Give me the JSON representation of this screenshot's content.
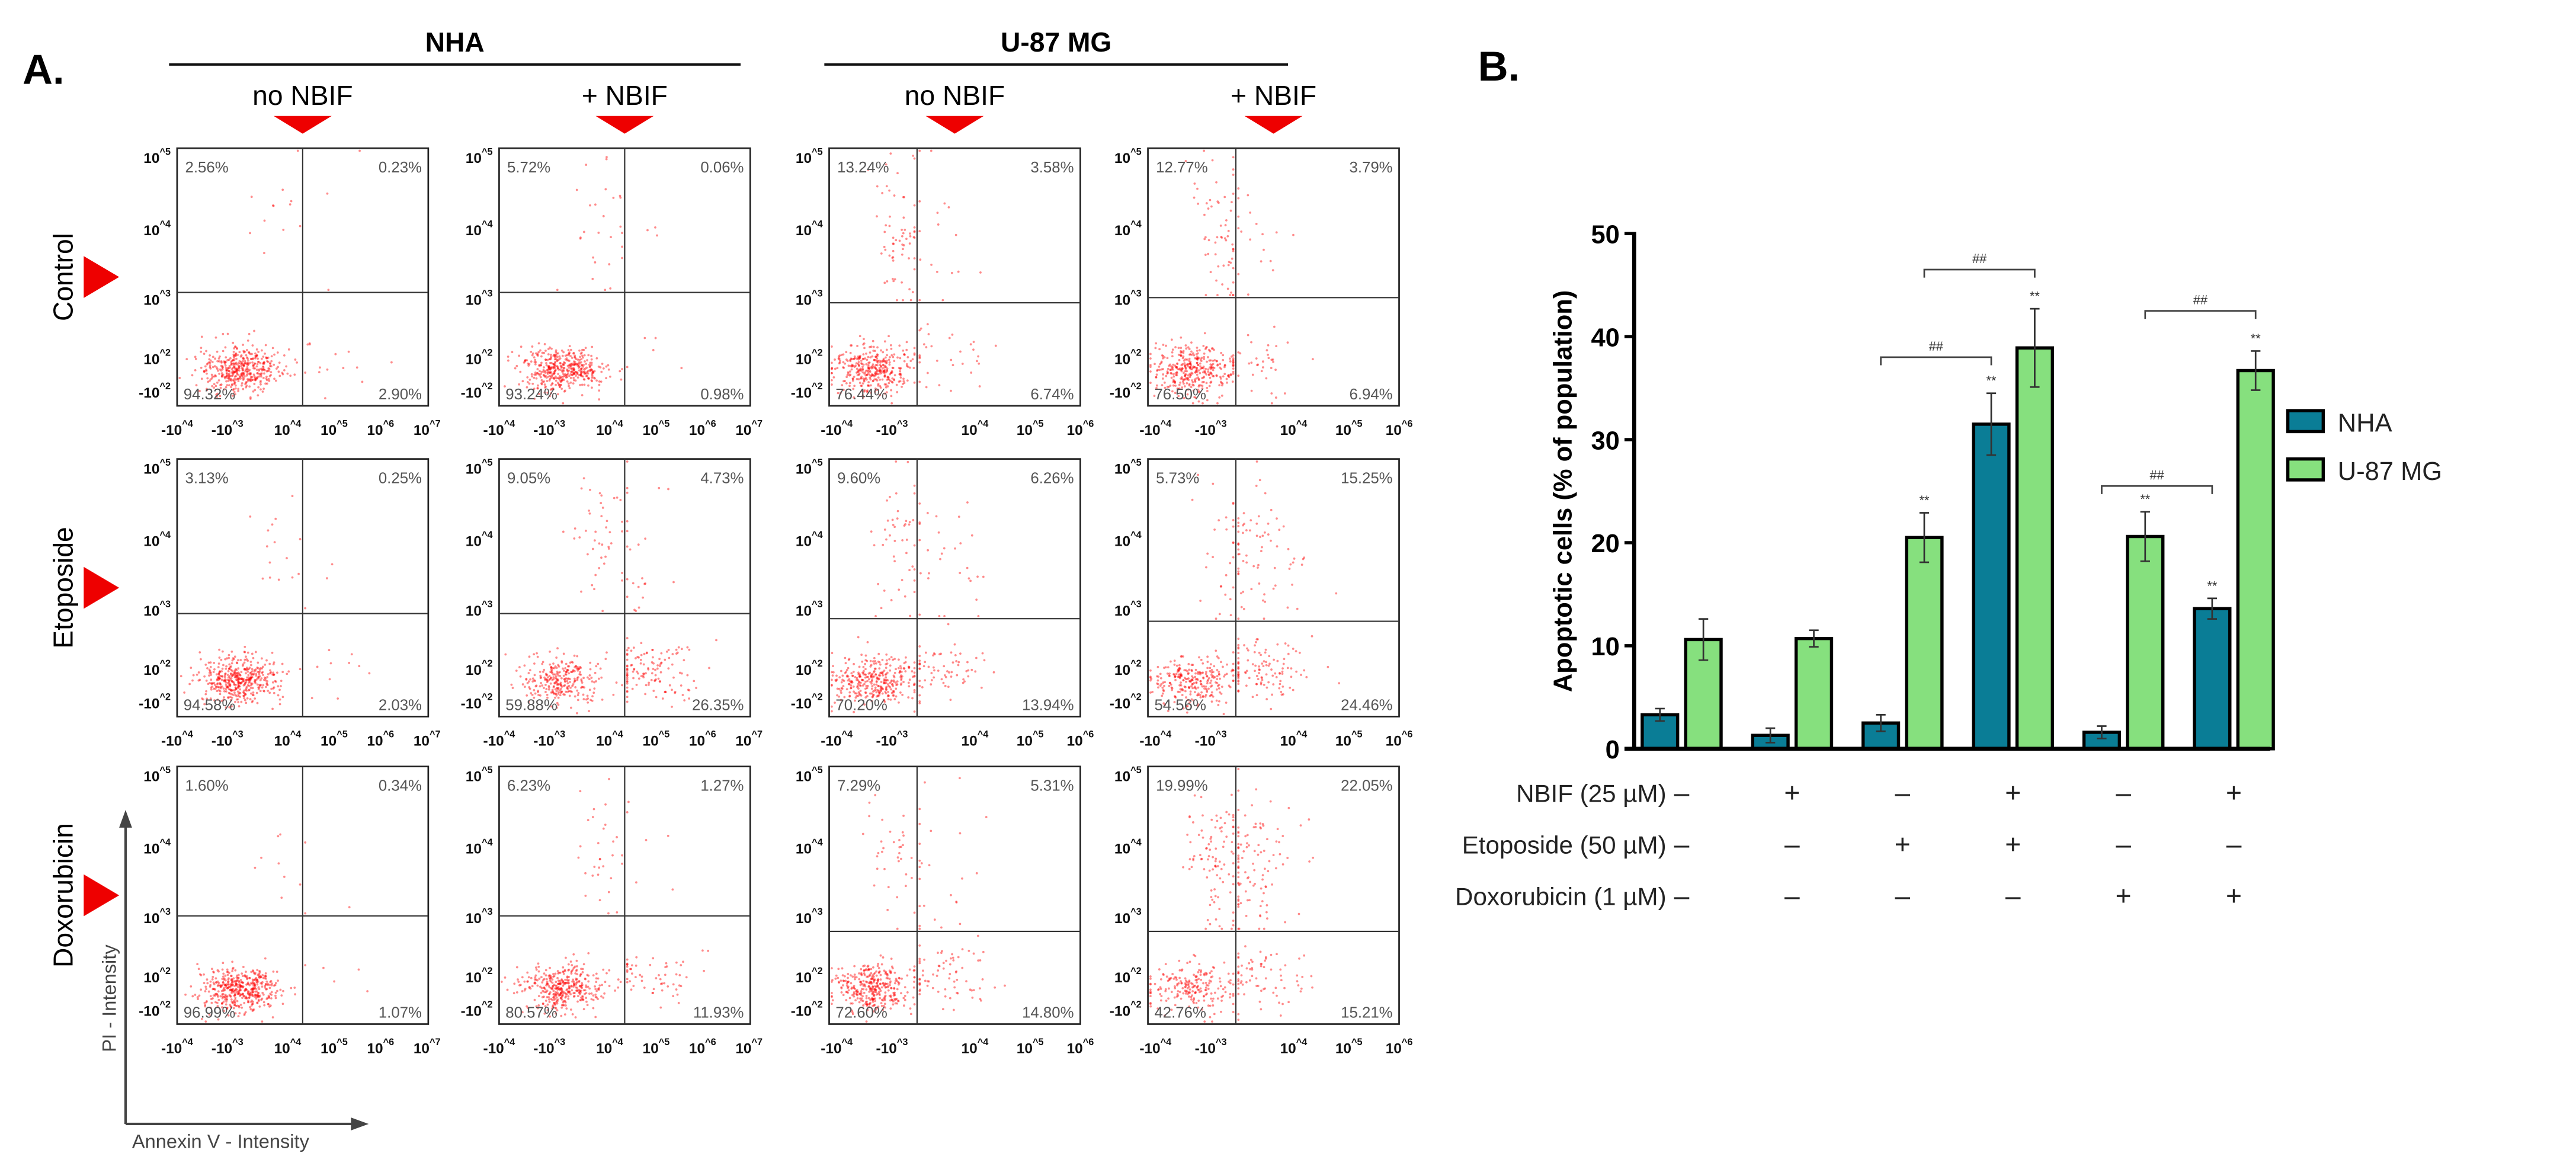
{
  "panel_a": {
    "label": "A.",
    "groups": [
      {
        "name": "NHA",
        "columns": [
          "no NBIF",
          "+ NBIF"
        ]
      },
      {
        "name": "U-87 MG",
        "columns": [
          "no NBIF",
          "+ NBIF"
        ]
      }
    ],
    "rows": [
      "Control",
      "Etoposide",
      "Doxorubicin"
    ],
    "y_ticks": [
      "10^5",
      "10^4",
      "10^3",
      "10^2",
      "-10^2"
    ],
    "x_ticks_nha": [
      "-10^4",
      "-10^3",
      "10^4",
      "10^5",
      "10^6",
      "10^7"
    ],
    "x_ticks_u87": [
      "-10^4",
      "-10^3",
      "10^4",
      "10^5",
      "10^6"
    ],
    "y_axis_label": "PI - Intensity",
    "x_axis_label": "Annexin V - Intensity",
    "quadrants": [
      [
        {
          "ul": "2.56%",
          "ur": "0.23%",
          "ll": "94.32%",
          "lr": "2.90%"
        },
        {
          "ul": "5.72%",
          "ur": "0.06%",
          "ll": "93.24%",
          "lr": "0.98%"
        },
        {
          "ul": "13.24%",
          "ur": "3.58%",
          "ll": "76.44%",
          "lr": "6.74%"
        },
        {
          "ul": "12.77%",
          "ur": "3.79%",
          "ll": "76.50%",
          "lr": "6.94%"
        }
      ],
      [
        {
          "ul": "3.13%",
          "ur": "0.25%",
          "ll": "94.58%",
          "lr": "2.03%"
        },
        {
          "ul": "9.05%",
          "ur": "4.73%",
          "ll": "59.88%",
          "lr": "26.35%"
        },
        {
          "ul": "9.60%",
          "ur": "6.26%",
          "ll": "70.20%",
          "lr": "13.94%"
        },
        {
          "ul": "5.73%",
          "ur": "15.25%",
          "ll": "54.56%",
          "lr": "24.46%"
        }
      ],
      [
        {
          "ul": "1.60%",
          "ur": "0.34%",
          "ll": "96.99%",
          "lr": "1.07%"
        },
        {
          "ul": "6.23%",
          "ur": "1.27%",
          "ll": "80.57%",
          "lr": "11.93%"
        },
        {
          "ul": "7.29%",
          "ur": "5.31%",
          "ll": "72.60%",
          "lr": "14.80%"
        },
        {
          "ul": "19.99%",
          "ur": "22.05%",
          "ll": "42.76%",
          "lr": "15.21%"
        }
      ]
    ],
    "dot_color": "#ff0000",
    "marker_color": "#ee0000"
  },
  "chart_data": {
    "label": "B.",
    "type": "bar",
    "categories": [
      "1",
      "2",
      "3",
      "4",
      "5",
      "6"
    ],
    "series": [
      {
        "name": "NHA",
        "color": "#0a7d96",
        "values": [
          3.3,
          1.3,
          2.5,
          31.5,
          1.6,
          13.6
        ],
        "errors": [
          0.6,
          0.7,
          0.8,
          3.0,
          0.6,
          1.0
        ]
      },
      {
        "name": "U-87 MG",
        "color": "#86e07e",
        "values": [
          10.6,
          10.7,
          20.5,
          38.9,
          20.6,
          36.7
        ],
        "errors": [
          2.0,
          0.8,
          2.4,
          3.8,
          2.4,
          1.9
        ]
      }
    ],
    "ylabel": "Apoptotic cells (% of population)",
    "xlabel": "",
    "ylim": [
      0,
      50
    ],
    "yticks": [
      0,
      10,
      20,
      30,
      40,
      50
    ],
    "legend_position": "right",
    "conditions": [
      {
        "name": "NBIF (25 µM)",
        "values": [
          "–",
          "+",
          "–",
          "+",
          "–",
          "+"
        ]
      },
      {
        "name": "Etoposide (50 µM)",
        "values": [
          "–",
          "–",
          "+",
          "+",
          "–",
          "–"
        ]
      },
      {
        "name": "Doxorubicin (1 µM)",
        "values": [
          "–",
          "–",
          "–",
          "–",
          "+",
          "+"
        ]
      }
    ],
    "stars": [
      {
        "series": 0,
        "category": 3,
        "text": "**"
      },
      {
        "series": 0,
        "category": 5,
        "text": "**"
      },
      {
        "series": 1,
        "category": 2,
        "text": "**"
      },
      {
        "series": 1,
        "category": 3,
        "text": "**"
      },
      {
        "series": 1,
        "category": 4,
        "text": "**"
      },
      {
        "series": 1,
        "category": 5,
        "text": "**"
      }
    ],
    "brackets": [
      {
        "series": 0,
        "from": 2,
        "to": 3,
        "level": 38,
        "text": "##"
      },
      {
        "series": 1,
        "from": 2,
        "to": 3,
        "level": 46.5,
        "text": "##"
      },
      {
        "series": 0,
        "from": 4,
        "to": 5,
        "level": 25.5,
        "text": "##"
      },
      {
        "series": 1,
        "from": 4,
        "to": 5,
        "level": 42.5,
        "text": "##"
      }
    ]
  }
}
